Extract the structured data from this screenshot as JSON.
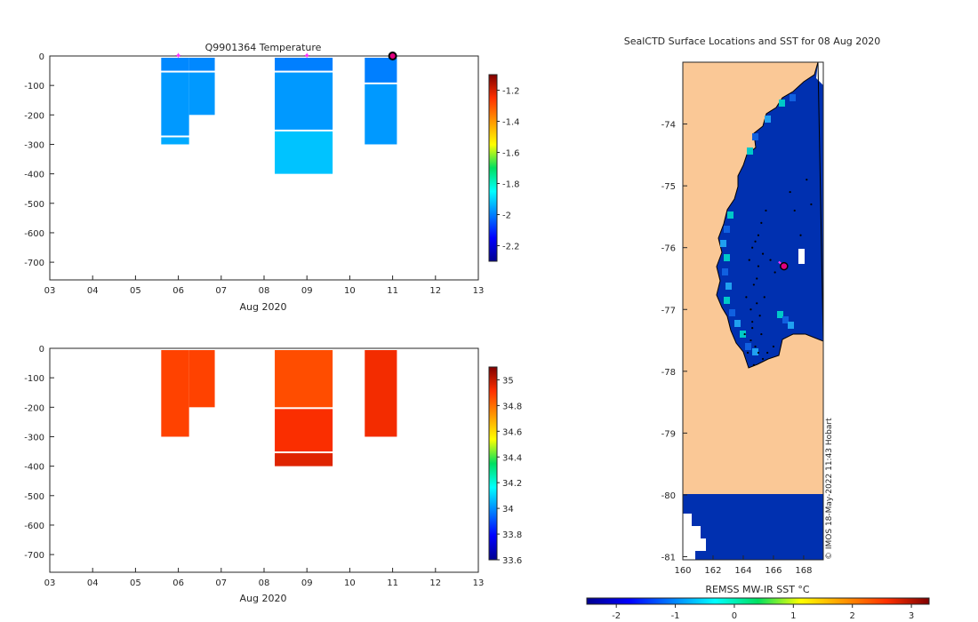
{
  "chart_data": [
    {
      "type": "heatmap",
      "title": "Q9901364  Temperature",
      "xlabel": "Aug 2020",
      "x_ticks": [
        "03",
        "04",
        "05",
        "06",
        "07",
        "08",
        "09",
        "10",
        "11",
        "12",
        "13"
      ],
      "xlim": [
        3,
        13
      ],
      "ylim": [
        -760,
        0
      ],
      "y_ticks": [
        0,
        -100,
        -200,
        -300,
        -400,
        -500,
        -600,
        -700
      ],
      "colorbar": {
        "min": -2.3,
        "max": -1.1,
        "ticks": [
          -1.2,
          -1.4,
          -1.6,
          -1.8,
          -2,
          -2.2
        ]
      },
      "profiles": [
        {
          "x0": 5.6,
          "x1": 6.25,
          "cells": [
            [
              0,
              -50,
              -1.99
            ],
            [
              -50,
              -270,
              -1.97
            ],
            [
              -270,
              -300,
              -1.95
            ]
          ]
        },
        {
          "x0": 6.25,
          "x1": 6.85,
          "cells": [
            [
              0,
              -50,
              -1.99
            ],
            [
              -50,
              -200,
              -1.97
            ]
          ]
        },
        {
          "x0": 8.25,
          "x1": 9.6,
          "cells": [
            [
              0,
              -50,
              -2.0
            ],
            [
              -50,
              -250,
              -1.97
            ],
            [
              -250,
              -400,
              -1.92
            ]
          ]
        },
        {
          "x0": 10.35,
          "x1": 11.1,
          "cells": [
            [
              0,
              -90,
              -2.0
            ],
            [
              -90,
              -300,
              -1.97
            ]
          ]
        }
      ],
      "markers": [
        {
          "x": 6.0,
          "y": 0,
          "style": "pink-star"
        },
        {
          "x": 9.0,
          "y": 0,
          "style": "pink-star"
        },
        {
          "x": 11.0,
          "y": 0,
          "style": "current"
        }
      ]
    },
    {
      "type": "heatmap",
      "title": "",
      "xlabel": "Aug 2020",
      "x_ticks": [
        "03",
        "04",
        "05",
        "06",
        "07",
        "08",
        "09",
        "10",
        "11",
        "12",
        "13"
      ],
      "xlim": [
        3,
        13
      ],
      "ylim": [
        -760,
        0
      ],
      "y_ticks": [
        0,
        -100,
        -200,
        -300,
        -400,
        -500,
        -600,
        -700
      ],
      "colorbar": {
        "min": 33.6,
        "max": 35.1,
        "ticks": [
          35,
          34.8,
          34.6,
          34.4,
          34.2,
          34,
          33.8,
          33.6
        ]
      },
      "profiles": [
        {
          "x0": 5.6,
          "x1": 6.25,
          "cells": [
            [
              0,
              -300,
              34.88
            ]
          ]
        },
        {
          "x0": 6.25,
          "x1": 6.85,
          "cells": [
            [
              0,
              -200,
              34.88
            ]
          ]
        },
        {
          "x0": 8.25,
          "x1": 9.6,
          "cells": [
            [
              0,
              -200,
              34.86
            ],
            [
              -200,
              -350,
              34.92
            ],
            [
              -350,
              -400,
              34.96
            ]
          ]
        },
        {
          "x0": 10.35,
          "x1": 11.1,
          "cells": [
            [
              0,
              -300,
              34.93
            ]
          ]
        }
      ]
    },
    {
      "type": "heatmap",
      "title": "SealCTD Surface Locations and SST for 08 Aug 2020",
      "xlabel": "",
      "xlim": [
        160,
        169.3
      ],
      "ylim": [
        -81.05,
        -73
      ],
      "x_ticks": [
        160,
        162,
        164,
        166,
        168
      ],
      "y_ticks": [
        -74,
        -75,
        -76,
        -77,
        -78,
        -79,
        -80,
        -81
      ],
      "sst_value": -2.0,
      "land_color": "#FAC896",
      "sea_color": "#0030B0",
      "colorbar": {
        "label": "REMSS MW-IR SST °C",
        "min": -2.5,
        "max": 3.3,
        "ticks": [
          -2,
          -1,
          0,
          1,
          2,
          3
        ]
      },
      "current_location": {
        "lon": 166.7,
        "lat": -76.3
      },
      "track_points": [
        [
          164.8,
          -75.9
        ],
        [
          164.6,
          -76.0
        ],
        [
          165.2,
          -75.6
        ],
        [
          165.5,
          -75.4
        ],
        [
          165.0,
          -76.3
        ],
        [
          164.7,
          -76.6
        ],
        [
          164.9,
          -76.9
        ],
        [
          165.1,
          -77.1
        ],
        [
          164.6,
          -77.3
        ],
        [
          164.5,
          -77.5
        ],
        [
          164.8,
          -77.6
        ],
        [
          165.0,
          -77.7
        ],
        [
          165.3,
          -77.8
        ],
        [
          165.6,
          -77.7
        ],
        [
          166.0,
          -77.6
        ],
        [
          164.4,
          -76.2
        ],
        [
          164.9,
          -76.5
        ],
        [
          165.4,
          -76.8
        ],
        [
          167.1,
          -75.1
        ],
        [
          167.4,
          -75.4
        ],
        [
          168.2,
          -74.9
        ],
        [
          168.5,
          -75.3
        ],
        [
          167.8,
          -75.8
        ],
        [
          168.0,
          -76.1
        ],
        [
          164.5,
          -77.0
        ],
        [
          165.2,
          -77.4
        ],
        [
          164.3,
          -77.7
        ],
        [
          164.7,
          -77.9
        ],
        [
          165.8,
          -76.2
        ],
        [
          166.1,
          -76.4
        ],
        [
          164.2,
          -76.8
        ],
        [
          165.0,
          -75.8
        ],
        [
          164.6,
          -77.2
        ],
        [
          165.3,
          -76.1
        ],
        [
          164.1,
          -77.4
        ]
      ],
      "watermark": "© IMOS 18-May-2022 11:43 Hobart"
    }
  ]
}
